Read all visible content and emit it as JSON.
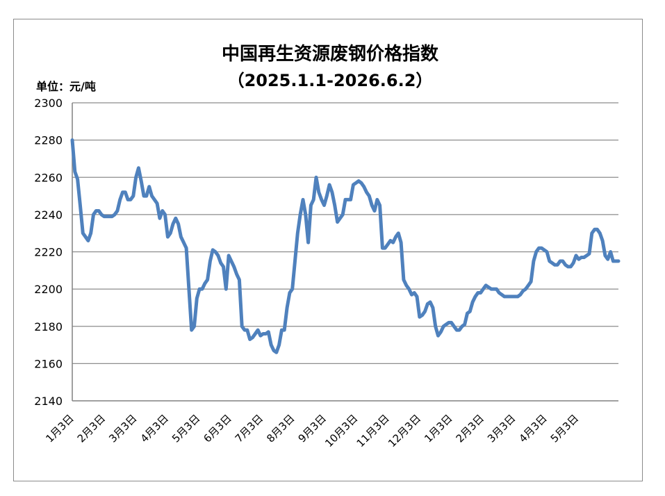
{
  "chart_data": {
    "type": "line",
    "title": "中国再生资源废钢价格指数",
    "subtitle": "（2025.1.1-2026.6.2）",
    "unit_label": "单位：元/吨",
    "ylim": [
      2140,
      2300
    ],
    "yticks": [
      2140,
      2160,
      2180,
      2200,
      2220,
      2240,
      2260,
      2280,
      2300
    ],
    "grid": true,
    "legend": "none",
    "line_color": "#4f81bd",
    "x_tick_labels": [
      "1月3日",
      "2月3日",
      "3月3日",
      "4月3日",
      "5月3日",
      "6月3日",
      "7月3日",
      "8月3日",
      "9月3日",
      "10月3日",
      "11月3日",
      "12月3日",
      "1月3日",
      "2月3日",
      "3月3日",
      "4月3日",
      "5月3日"
    ],
    "series": [
      {
        "values": [
          2280,
          2263,
          2259,
          2245,
          2230,
          2228,
          2226,
          2230,
          2240,
          2242,
          2242,
          2240,
          2239,
          2239,
          2239,
          2239,
          2240,
          2242,
          2248,
          2252,
          2252,
          2248,
          2248,
          2250,
          2260,
          2265,
          2258,
          2250,
          2250,
          2255,
          2250,
          2248,
          2246,
          2238,
          2242,
          2240,
          2228,
          2230,
          2235,
          2238,
          2235,
          2228,
          2225,
          2222,
          2200,
          2178,
          2180,
          2195,
          2200,
          2200,
          2203,
          2205,
          2215,
          2221,
          2220,
          2218,
          2214,
          2212,
          2200,
          2218,
          2215,
          2212,
          2208,
          2205,
          2180,
          2178,
          2178,
          2173,
          2174,
          2176,
          2178,
          2175,
          2176,
          2176,
          2177,
          2170,
          2167,
          2166,
          2170,
          2178,
          2178,
          2190,
          2198,
          2200,
          2215,
          2230,
          2240,
          2248,
          2240,
          2225,
          2245,
          2248,
          2260,
          2252,
          2248,
          2245,
          2250,
          2256,
          2252,
          2245,
          2236,
          2238,
          2240,
          2248,
          2248,
          2248,
          2256,
          2257,
          2258,
          2257,
          2255,
          2252,
          2250,
          2245,
          2242,
          2248,
          2245,
          2222,
          2222,
          2224,
          2226,
          2225,
          2228,
          2230,
          2225,
          2205,
          2202,
          2200,
          2197,
          2198,
          2196,
          2185,
          2186,
          2188,
          2192,
          2193,
          2190,
          2180,
          2175,
          2177,
          2180,
          2181,
          2182,
          2182,
          2180,
          2178,
          2178,
          2180,
          2181,
          2187,
          2188,
          2193,
          2196,
          2198,
          2198,
          2200,
          2202,
          2201,
          2200,
          2200,
          2200,
          2198,
          2197,
          2196,
          2196,
          2196,
          2196,
          2196,
          2196,
          2197,
          2199,
          2200,
          2202,
          2204,
          2215,
          2220,
          2222,
          2222,
          2221,
          2220,
          2215,
          2214,
          2213,
          2213,
          2215,
          2215,
          2213,
          2212,
          2212,
          2214,
          2218,
          2216,
          2217,
          2217,
          2218,
          2219,
          2230,
          2232,
          2232,
          2230,
          2226,
          2218,
          2216,
          2220,
          2215,
          2215,
          2215
        ]
      }
    ]
  }
}
